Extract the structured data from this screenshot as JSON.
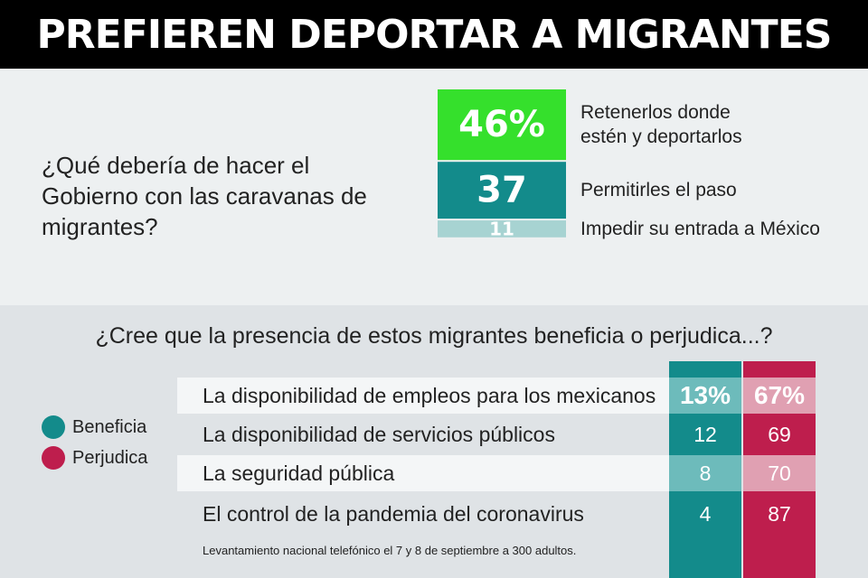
{
  "title": "PREFIEREN DEPORTAR A MIGRANTES",
  "colors": {
    "bright_green": "#35e02c",
    "teal": "#138b8b",
    "light_teal": "#a7d3d2",
    "mid_teal": "#6dbbbb",
    "crimson": "#be1e4d",
    "pink": "#e0a0b2"
  },
  "question1": "¿Qué debería de hacer el Gobierno con las caravanas de migrantes?",
  "chart1": {
    "type": "bar",
    "categories": [
      "Retenerlos donde estén y deportarlos",
      "Permitirles el paso",
      "Impedir su entrada a México"
    ],
    "values": [
      46,
      37,
      11
    ],
    "value_labels": [
      "46%",
      "37",
      "11"
    ],
    "category_lines": [
      [
        "Retenerlos donde",
        "estén y deportarlos"
      ],
      [
        "Permitirles el paso"
      ],
      [
        "Impedir su entrada a México"
      ]
    ]
  },
  "question2": "¿Cree que la presencia de estos migrantes beneficia o perjudica...?",
  "legend": [
    {
      "label": "Beneficia",
      "color": "#138b8b"
    },
    {
      "label": "Perjudica",
      "color": "#be1e4d"
    }
  ],
  "chart2": {
    "type": "table",
    "categories": [
      "La disponibilidad de empleos para los mexicanos",
      "La disponibilidad de servicios públicos",
      "La seguridad pública",
      "El control de la pandemia del coronavirus"
    ],
    "series": [
      {
        "name": "Beneficia",
        "values": [
          13,
          12,
          8,
          4
        ],
        "labels": [
          "13%",
          "12",
          "8",
          "4"
        ]
      },
      {
        "name": "Perjudica",
        "values": [
          67,
          69,
          70,
          87
        ],
        "labels": [
          "67%",
          "69",
          "70",
          "87"
        ]
      }
    ]
  },
  "chart_data": [
    {
      "type": "bar",
      "title": "¿Qué debería de hacer el Gobierno con las caravanas de migrantes?",
      "categories": [
        "Retenerlos donde estén y deportarlos",
        "Permitirles el paso",
        "Impedir su entrada a México"
      ],
      "values": [
        46,
        37,
        11
      ]
    },
    {
      "type": "table",
      "title": "¿Cree que la presencia de estos migrantes beneficia o perjudica...?",
      "categories": [
        "La disponibilidad de empleos para los mexicanos",
        "La disponibilidad de servicios públicos",
        "La seguridad pública",
        "El control de la pandemia del coronavirus"
      ],
      "series": [
        {
          "name": "Beneficia",
          "values": [
            13,
            12,
            8,
            4
          ]
        },
        {
          "name": "Perjudica",
          "values": [
            67,
            69,
            70,
            87
          ]
        }
      ]
    }
  ],
  "footnote": "Levantamiento nacional telefónico el 7 y 8 de septiembre a 300 adultos."
}
